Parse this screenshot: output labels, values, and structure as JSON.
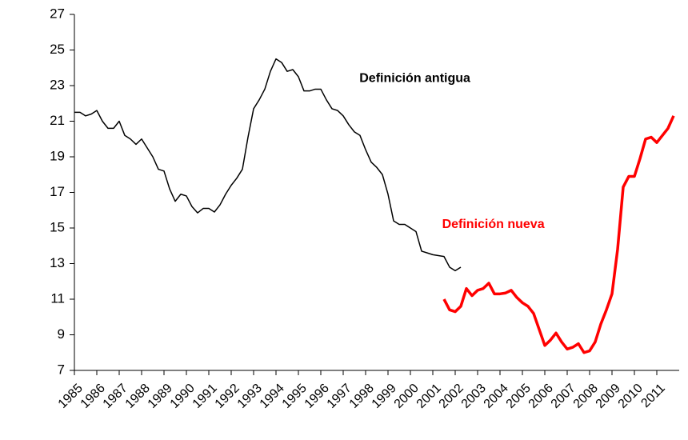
{
  "chart_data": {
    "type": "line",
    "annotations": [
      {
        "text": "Definición antigua",
        "x": 2000.2,
        "y": 23.4,
        "color": "#000000"
      },
      {
        "text": "Definición nueva",
        "x": 2003.7,
        "y": 15.2,
        "color": "#ff0000"
      }
    ],
    "xlim": [
      1985,
      2012
    ],
    "xticks": [
      1985,
      1986,
      1987,
      1988,
      1989,
      1990,
      1991,
      1992,
      1993,
      1994,
      1995,
      1996,
      1997,
      1998,
      1999,
      2000,
      2001,
      2002,
      2003,
      2004,
      2005,
      2006,
      2007,
      2008,
      2009,
      2010,
      2011
    ],
    "ylim": [
      7,
      27
    ],
    "yticks": [
      7,
      9,
      11,
      13,
      15,
      17,
      19,
      21,
      23,
      25,
      27
    ],
    "series": [
      {
        "color": "#000000",
        "width": 1.5,
        "x": [
          1985,
          1985.25,
          1985.5,
          1985.75,
          1986,
          1986.25,
          1986.5,
          1986.75,
          1987,
          1987.25,
          1987.5,
          1987.75,
          1988,
          1988.25,
          1988.5,
          1988.75,
          1989,
          1989.25,
          1989.5,
          1989.75,
          1990,
          1990.25,
          1990.5,
          1990.75,
          1991,
          1991.25,
          1991.5,
          1991.75,
          1992,
          1992.25,
          1992.5,
          1992.75,
          1993,
          1993.25,
          1993.5,
          1993.75,
          1994,
          1994.25,
          1994.5,
          1994.75,
          1995,
          1995.25,
          1995.5,
          1995.75,
          1996,
          1996.25,
          1996.5,
          1996.75,
          1997,
          1997.25,
          1997.5,
          1997.75,
          1998,
          1998.25,
          1998.5,
          1998.75,
          1999,
          1999.25,
          1999.5,
          1999.75,
          2000,
          2000.25,
          2000.5,
          2000.75,
          2001,
          2001.25,
          2001.5,
          2001.75,
          2002,
          2002.25
        ],
        "values": [
          21.5,
          21.5,
          21.3,
          21.4,
          21.6,
          21.0,
          20.6,
          20.6,
          21.0,
          20.2,
          20.0,
          19.7,
          20.0,
          19.5,
          19.0,
          18.3,
          18.2,
          17.2,
          16.5,
          16.9,
          16.8,
          16.2,
          15.85,
          16.1,
          16.1,
          15.9,
          16.3,
          16.9,
          17.4,
          17.8,
          18.3,
          20.1,
          21.7,
          22.2,
          22.8,
          23.8,
          24.5,
          24.3,
          23.8,
          23.9,
          23.5,
          22.7,
          22.7,
          22.8,
          22.8,
          22.2,
          21.7,
          21.6,
          21.3,
          20.8,
          20.4,
          20.2,
          19.4,
          18.7,
          18.4,
          18.0,
          16.9,
          15.4,
          15.2,
          15.2,
          15.0,
          14.8,
          13.7,
          13.6,
          13.5,
          13.45,
          13.4,
          12.8,
          12.6,
          12.8
        ]
      },
      {
        "color": "#ff0000",
        "width": 3.5,
        "x": [
          2001.5,
          2001.75,
          2002,
          2002.25,
          2002.5,
          2002.75,
          2003,
          2003.25,
          2003.5,
          2003.75,
          2004,
          2004.25,
          2004.5,
          2004.75,
          2005,
          2005.25,
          2005.5,
          2005.75,
          2006,
          2006.25,
          2006.5,
          2006.75,
          2007,
          2007.25,
          2007.5,
          2007.75,
          2008,
          2008.25,
          2008.5,
          2008.75,
          2009,
          2009.25,
          2009.5,
          2009.75,
          2010,
          2010.25,
          2010.5,
          2010.75,
          2011,
          2011.25,
          2011.5,
          2011.75
        ],
        "values": [
          11.0,
          10.4,
          10.3,
          10.6,
          11.6,
          11.2,
          11.5,
          11.6,
          11.9,
          11.3,
          11.3,
          11.35,
          11.5,
          11.1,
          10.8,
          10.6,
          10.2,
          9.3,
          8.4,
          8.7,
          9.1,
          8.6,
          8.2,
          8.3,
          8.5,
          8.0,
          8.1,
          8.6,
          9.6,
          10.4,
          11.3,
          13.8,
          17.3,
          17.9,
          17.9,
          18.9,
          20.0,
          20.1,
          19.8,
          20.2,
          20.6,
          21.3
        ]
      }
    ]
  }
}
